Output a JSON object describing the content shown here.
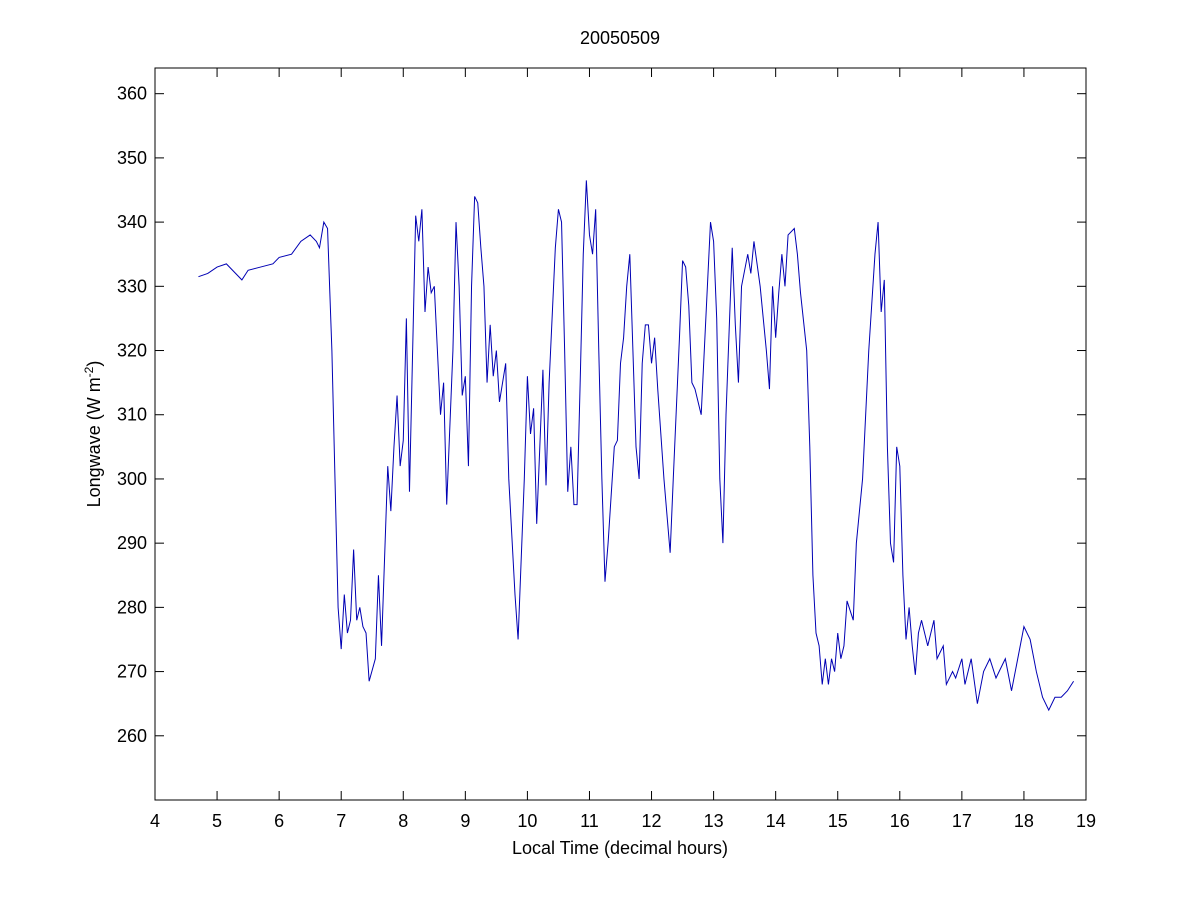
{
  "chart_data": {
    "type": "line",
    "title": "20050509",
    "xlabel": "Local Time (decimal hours)",
    "ylabel": "Longwave (W m",
    "ylabel_sup": "-2",
    "ylabel_end": ")",
    "xlim": [
      4,
      19
    ],
    "ylim": [
      250,
      364
    ],
    "xticks": [
      4,
      5,
      6,
      7,
      8,
      9,
      10,
      11,
      12,
      13,
      14,
      15,
      16,
      17,
      18,
      19
    ],
    "yticks": [
      260,
      270,
      280,
      290,
      300,
      310,
      320,
      330,
      340,
      350,
      360
    ],
    "series": [
      {
        "name": "Longwave",
        "color": "#0000b4",
        "x": [
          4.7,
          4.85,
          5.0,
          5.15,
          5.3,
          5.4,
          5.5,
          5.7,
          5.9,
          6.0,
          6.2,
          6.35,
          6.5,
          6.6,
          6.65,
          6.72,
          6.78,
          6.85,
          6.9,
          6.95,
          7.0,
          7.05,
          7.1,
          7.15,
          7.2,
          7.25,
          7.3,
          7.35,
          7.4,
          7.45,
          7.55,
          7.6,
          7.65,
          7.75,
          7.8,
          7.85,
          7.9,
          7.95,
          8.0,
          8.05,
          8.1,
          8.2,
          8.25,
          8.3,
          8.35,
          8.4,
          8.45,
          8.5,
          8.55,
          8.6,
          8.65,
          8.7,
          8.8,
          8.85,
          8.9,
          8.95,
          9.0,
          9.05,
          9.1,
          9.15,
          9.2,
          9.25,
          9.3,
          9.35,
          9.4,
          9.45,
          9.5,
          9.55,
          9.65,
          9.7,
          9.8,
          9.85,
          9.95,
          10.0,
          10.05,
          10.1,
          10.15,
          10.2,
          10.25,
          10.3,
          10.35,
          10.45,
          10.5,
          10.55,
          10.6,
          10.65,
          10.7,
          10.75,
          10.8,
          10.85,
          10.9,
          10.95,
          11.0,
          11.05,
          11.1,
          11.15,
          11.2,
          11.25,
          11.3,
          11.4,
          11.45,
          11.5,
          11.55,
          11.6,
          11.65,
          11.7,
          11.75,
          11.8,
          11.85,
          11.9,
          11.95,
          12.0,
          12.05,
          12.1,
          12.2,
          12.3,
          12.35,
          12.45,
          12.5,
          12.55,
          12.6,
          12.65,
          12.7,
          12.75,
          12.8,
          12.9,
          12.95,
          13.0,
          13.05,
          13.1,
          13.15,
          13.2,
          13.3,
          13.35,
          13.4,
          13.45,
          13.55,
          13.6,
          13.65,
          13.75,
          13.8,
          13.85,
          13.9,
          13.95,
          14.0,
          14.05,
          14.1,
          14.15,
          14.2,
          14.3,
          14.35,
          14.4,
          14.5,
          14.55,
          14.6,
          14.65,
          14.7,
          14.75,
          14.8,
          14.85,
          14.9,
          14.95,
          15.0,
          15.05,
          15.1,
          15.15,
          15.25,
          15.3,
          15.4,
          15.5,
          15.6,
          15.65,
          15.7,
          15.75,
          15.8,
          15.85,
          15.9,
          15.95,
          16.0,
          16.05,
          16.1,
          16.15,
          16.2,
          16.25,
          16.3,
          16.35,
          16.45,
          16.55,
          16.6,
          16.7,
          16.75,
          16.85,
          16.9,
          17.0,
          17.05,
          17.15,
          17.25,
          17.35,
          17.45,
          17.55,
          17.7,
          17.8,
          17.9,
          18.0,
          18.05,
          18.1,
          18.2,
          18.3,
          18.4,
          18.5,
          18.6,
          18.7,
          18.8
        ],
        "values": [
          331.5,
          332,
          333,
          333.5,
          332,
          331,
          332.5,
          333,
          333.5,
          334.5,
          335,
          337,
          338,
          337,
          336,
          340,
          339,
          320,
          300,
          280,
          273.5,
          282,
          276,
          278,
          289,
          278,
          280,
          277,
          276,
          268.5,
          272,
          285,
          274,
          302,
          295,
          305,
          313,
          302,
          306,
          325,
          298,
          341,
          337,
          342,
          326,
          333,
          329,
          330,
          320,
          310,
          315,
          296,
          320,
          340,
          330,
          313,
          316,
          302,
          330,
          344,
          343,
          336,
          330,
          315,
          324,
          316,
          320,
          312,
          318,
          300,
          282,
          275,
          300,
          316,
          307,
          311,
          293,
          305,
          317,
          299,
          315,
          336,
          342,
          340,
          320,
          298,
          305,
          296,
          296,
          315,
          335,
          346.5,
          338,
          335,
          342,
          320,
          300,
          284,
          290,
          305,
          306,
          318,
          322,
          330,
          335,
          320,
          305,
          300,
          318,
          324,
          324,
          318,
          322,
          314,
          300,
          288.5,
          300,
          322,
          334,
          333,
          327,
          315,
          314,
          312,
          310,
          330,
          340,
          337,
          325,
          300,
          290,
          310,
          336,
          324,
          315,
          330,
          335,
          332,
          337,
          330,
          325,
          320,
          314,
          330,
          322,
          329,
          335,
          330,
          338,
          339,
          335,
          329,
          320,
          305,
          285,
          276,
          274,
          268,
          272,
          268,
          272,
          270,
          276,
          272,
          274,
          281,
          278,
          290,
          300,
          320,
          335,
          340,
          326,
          331,
          305,
          290,
          287,
          305,
          302,
          285,
          275,
          280,
          274,
          269.5,
          276,
          278,
          274,
          278,
          272,
          274,
          268,
          270,
          269,
          272,
          268,
          272,
          265,
          270,
          272,
          269,
          272,
          267,
          272,
          277,
          276,
          275,
          270,
          266,
          264,
          266,
          266,
          267,
          268.5
        ]
      }
    ]
  }
}
